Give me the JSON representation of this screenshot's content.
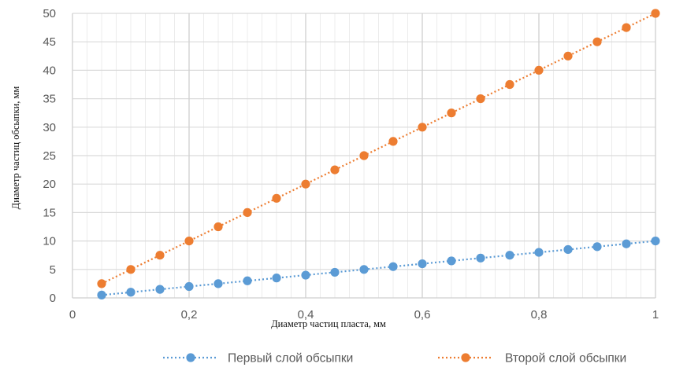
{
  "chart_data": {
    "type": "line",
    "title": "",
    "xlabel": "Диаметр частиц пласта, мм",
    "ylabel": "Диаметр частиц обсыпки, мм",
    "xlim": [
      0,
      1
    ],
    "ylim": [
      0,
      50
    ],
    "x_ticks": [
      0,
      0.2,
      0.4,
      0.6,
      0.8,
      1
    ],
    "x_tick_labels": [
      "0",
      "0,2",
      "0,4",
      "0,6",
      "0,8",
      "1"
    ],
    "y_ticks": [
      0,
      5,
      10,
      15,
      20,
      25,
      30,
      35,
      40,
      45,
      50
    ],
    "y_tick_labels": [
      "0",
      "5",
      "10",
      "15",
      "20",
      "25",
      "30",
      "35",
      "40",
      "45",
      "50"
    ],
    "grid": true,
    "legend_position": "bottom",
    "x": [
      0.05,
      0.1,
      0.15,
      0.2,
      0.25,
      0.3,
      0.35,
      0.4,
      0.45,
      0.5,
      0.55,
      0.6,
      0.65,
      0.7,
      0.75,
      0.8,
      0.85,
      0.9,
      0.95,
      1.0
    ],
    "series": [
      {
        "name": "Первый слой обсыпки",
        "color": "#5B9BD5",
        "values": [
          0.5,
          1.0,
          1.5,
          2.0,
          2.5,
          3.0,
          3.5,
          4.0,
          4.5,
          5.0,
          5.5,
          6.0,
          6.5,
          7.0,
          7.5,
          8.0,
          8.5,
          9.0,
          9.5,
          10.0
        ]
      },
      {
        "name": "Второй слой обсыпки",
        "color": "#ED7D31",
        "values": [
          2.5,
          5.0,
          7.5,
          10.0,
          12.5,
          15.0,
          17.5,
          20.0,
          22.5,
          25.0,
          27.5,
          30.0,
          32.5,
          35.0,
          37.5,
          40.0,
          42.5,
          45.0,
          47.5,
          50.0
        ]
      }
    ]
  }
}
